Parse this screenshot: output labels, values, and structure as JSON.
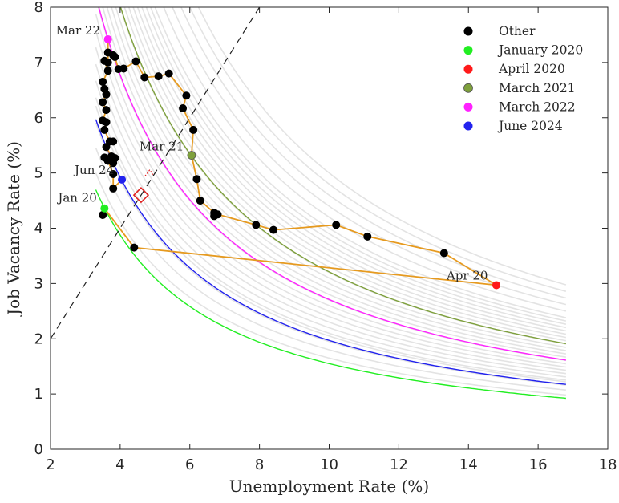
{
  "chart_data": {
    "type": "scatter",
    "xlabel": "Unemployment Rate (%)",
    "ylabel": "Job Vacancy Rate (%)",
    "xlim": [
      2,
      18
    ],
    "ylim": [
      0,
      8
    ],
    "xticks": [
      2,
      4,
      6,
      8,
      10,
      12,
      14,
      16,
      18
    ],
    "yticks": [
      0,
      1,
      2,
      3,
      4,
      5,
      6,
      7,
      8
    ],
    "grid": false,
    "legend_position": "top-right",
    "colors": {
      "path": "#e69a1f",
      "beveridge_gray": "#e3e3e3",
      "other": "#000000",
      "jan2020": "#22ee22",
      "apr2020": "#ff1a1a",
      "mar2021": "#7ea03c",
      "mar2022": "#ff22ff",
      "jun2024": "#2222ee",
      "diamond": "#e02020",
      "diagonal": "#222222"
    },
    "legend": [
      {
        "label": "Other",
        "color": "#000000",
        "key": "other"
      },
      {
        "label": "January 2020",
        "color": "#22ee22",
        "key": "jan2020"
      },
      {
        "label": "April 2020",
        "color": "#ff1a1a",
        "key": "apr2020"
      },
      {
        "label": "March 2021",
        "color": "#7ea03c",
        "key": "mar2021"
      },
      {
        "label": "March 2022",
        "color": "#ff22ff",
        "key": "mar2022"
      },
      {
        "label": "June 2024",
        "color": "#2222ee",
        "key": "jun2024"
      }
    ],
    "annotations": [
      {
        "text": "Mar 22",
        "x": 3.65,
        "y": 7.42
      },
      {
        "text": "Mar 21",
        "x": 6.05,
        "y": 5.32
      },
      {
        "text": "Jun 24",
        "x": 4.05,
        "y": 4.88
      },
      {
        "text": "Jan 20",
        "x": 3.55,
        "y": 4.36
      },
      {
        "text": "Apr 20",
        "x": 14.8,
        "y": 2.97
      }
    ],
    "path_points": [
      {
        "x": 3.5,
        "y": 4.24
      },
      {
        "x": 3.55,
        "y": 4.36
      },
      {
        "x": 4.4,
        "y": 3.65
      },
      {
        "x": 14.8,
        "y": 2.97
      },
      {
        "x": 13.3,
        "y": 3.55
      },
      {
        "x": 11.1,
        "y": 3.85
      },
      {
        "x": 10.2,
        "y": 4.06
      },
      {
        "x": 8.4,
        "y": 3.97
      },
      {
        "x": 7.9,
        "y": 4.06
      },
      {
        "x": 6.8,
        "y": 4.25
      },
      {
        "x": 6.7,
        "y": 4.22
      },
      {
        "x": 6.7,
        "y": 4.28
      },
      {
        "x": 6.3,
        "y": 4.5
      },
      {
        "x": 6.2,
        "y": 4.89
      },
      {
        "x": 6.05,
        "y": 5.32
      },
      {
        "x": 6.1,
        "y": 5.78
      },
      {
        "x": 5.8,
        "y": 6.17
      },
      {
        "x": 5.9,
        "y": 6.4
      },
      {
        "x": 5.4,
        "y": 6.8
      },
      {
        "x": 5.1,
        "y": 6.75
      },
      {
        "x": 4.7,
        "y": 6.73
      },
      {
        "x": 4.45,
        "y": 7.02
      },
      {
        "x": 4.1,
        "y": 6.89
      },
      {
        "x": 3.95,
        "y": 6.88
      },
      {
        "x": 3.85,
        "y": 7.1
      },
      {
        "x": 3.8,
        "y": 7.13
      },
      {
        "x": 3.65,
        "y": 7.18
      },
      {
        "x": 3.65,
        "y": 7.42
      },
      {
        "x": 3.65,
        "y": 7.0
      },
      {
        "x": 3.55,
        "y": 7.03
      },
      {
        "x": 3.65,
        "y": 6.85
      },
      {
        "x": 3.5,
        "y": 6.65
      },
      {
        "x": 3.55,
        "y": 6.52
      },
      {
        "x": 3.6,
        "y": 6.42
      },
      {
        "x": 3.5,
        "y": 6.28
      },
      {
        "x": 3.6,
        "y": 6.14
      },
      {
        "x": 3.5,
        "y": 5.95
      },
      {
        "x": 3.6,
        "y": 5.92
      },
      {
        "x": 3.55,
        "y": 5.78
      },
      {
        "x": 3.7,
        "y": 5.57
      },
      {
        "x": 3.8,
        "y": 5.57
      },
      {
        "x": 3.6,
        "y": 5.47
      },
      {
        "x": 3.75,
        "y": 5.3
      },
      {
        "x": 3.55,
        "y": 5.28
      },
      {
        "x": 3.85,
        "y": 5.27
      },
      {
        "x": 3.8,
        "y": 5.18
      },
      {
        "x": 3.65,
        "y": 5.22
      },
      {
        "x": 3.8,
        "y": 4.98
      },
      {
        "x": 3.8,
        "y": 4.72
      },
      {
        "x": 4.05,
        "y": 4.88
      }
    ],
    "other_points": [
      {
        "x": 3.5,
        "y": 4.24
      },
      {
        "x": 4.4,
        "y": 3.65
      },
      {
        "x": 13.3,
        "y": 3.55
      },
      {
        "x": 11.1,
        "y": 3.85
      },
      {
        "x": 10.2,
        "y": 4.06
      },
      {
        "x": 8.4,
        "y": 3.97
      },
      {
        "x": 7.9,
        "y": 4.06
      },
      {
        "x": 6.8,
        "y": 4.25
      },
      {
        "x": 6.7,
        "y": 4.22
      },
      {
        "x": 6.7,
        "y": 4.28
      },
      {
        "x": 6.3,
        "y": 4.5
      },
      {
        "x": 6.2,
        "y": 4.89
      },
      {
        "x": 6.1,
        "y": 5.78
      },
      {
        "x": 5.8,
        "y": 6.17
      },
      {
        "x": 5.9,
        "y": 6.4
      },
      {
        "x": 5.4,
        "y": 6.8
      },
      {
        "x": 5.1,
        "y": 6.75
      },
      {
        "x": 4.7,
        "y": 6.73
      },
      {
        "x": 4.45,
        "y": 7.02
      },
      {
        "x": 4.1,
        "y": 6.89
      },
      {
        "x": 3.95,
        "y": 6.88
      },
      {
        "x": 3.85,
        "y": 7.1
      },
      {
        "x": 3.8,
        "y": 7.13
      },
      {
        "x": 3.65,
        "y": 7.18
      },
      {
        "x": 3.65,
        "y": 7.0
      },
      {
        "x": 3.55,
        "y": 7.03
      },
      {
        "x": 3.65,
        "y": 6.85
      },
      {
        "x": 3.5,
        "y": 6.65
      },
      {
        "x": 3.55,
        "y": 6.52
      },
      {
        "x": 3.6,
        "y": 6.42
      },
      {
        "x": 3.5,
        "y": 6.28
      },
      {
        "x": 3.6,
        "y": 6.14
      },
      {
        "x": 3.5,
        "y": 5.95
      },
      {
        "x": 3.6,
        "y": 5.92
      },
      {
        "x": 3.55,
        "y": 5.78
      },
      {
        "x": 3.7,
        "y": 5.57
      },
      {
        "x": 3.8,
        "y": 5.57
      },
      {
        "x": 3.6,
        "y": 5.47
      },
      {
        "x": 3.75,
        "y": 5.3
      },
      {
        "x": 3.55,
        "y": 5.28
      },
      {
        "x": 3.85,
        "y": 5.27
      },
      {
        "x": 3.8,
        "y": 5.18
      },
      {
        "x": 3.65,
        "y": 5.22
      },
      {
        "x": 3.8,
        "y": 4.98
      },
      {
        "x": 3.8,
        "y": 4.72
      }
    ],
    "highlight_points": [
      {
        "key": "jan2020",
        "x": 3.55,
        "y": 4.36
      },
      {
        "key": "apr2020",
        "x": 14.8,
        "y": 2.97
      },
      {
        "key": "mar2021",
        "x": 6.05,
        "y": 5.32
      },
      {
        "key": "mar2022",
        "x": 3.65,
        "y": 7.42
      },
      {
        "key": "jun2024",
        "x": 4.05,
        "y": 4.88
      }
    ],
    "curves": {
      "x_range": [
        3.3,
        16.8
      ],
      "gray_constants": [
        16.5,
        18,
        19.5,
        20.5,
        21,
        22,
        23,
        24,
        25,
        26,
        27,
        28,
        29,
        30,
        31,
        32,
        33,
        34,
        35,
        36,
        37,
        38,
        39,
        40,
        42,
        44,
        46,
        48,
        50
      ],
      "highlighted": [
        {
          "key": "jan2020",
          "constant": 15.5,
          "color": "#22ee22"
        },
        {
          "key": "jun2024",
          "constant": 19.7,
          "color": "#2222ee"
        },
        {
          "key": "mar2021",
          "constant": 32.1,
          "color": "#7ea03c"
        },
        {
          "key": "mar2022",
          "constant": 27.1,
          "color": "#ff22ff"
        }
      ]
    },
    "diagonal_line": {
      "x": [
        2,
        8
      ],
      "y": [
        2,
        8
      ]
    },
    "diamond_marker": {
      "x": 4.6,
      "y": 4.6
    },
    "dotted_marker": {
      "x": 4.85,
      "y": 5.0
    }
  }
}
